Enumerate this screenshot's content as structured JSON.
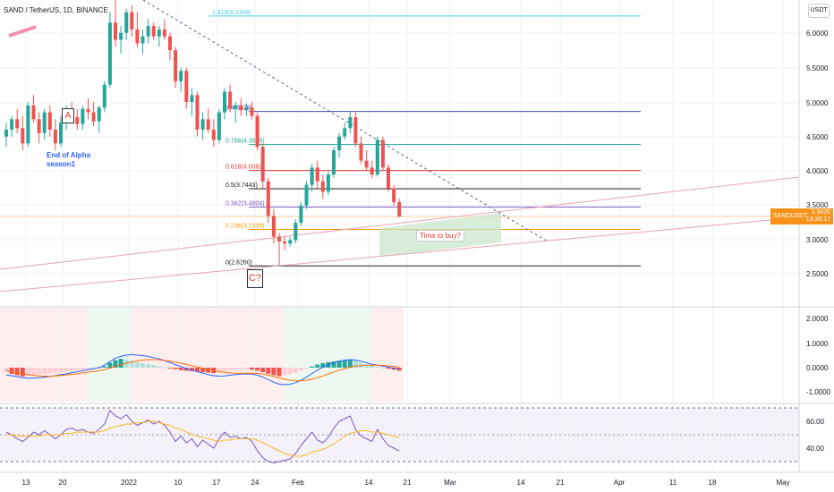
{
  "header": {
    "symbol_title": "SAND / TetherUS, 1D, BINANCE",
    "currency_label": "USDT"
  },
  "colors": {
    "up": "#26a69a",
    "down": "#ef5350",
    "grid": "#eef0f3",
    "macd_line": "#2962ff",
    "signal_line": "#ff6d00",
    "rsi_line": "#7e57c2",
    "rsi_ma": "#f7b924",
    "price_tag": "#f7931a"
  },
  "annotations": {
    "label_a": "A",
    "label_c": "C?",
    "alpha_note": "End of Alpha\nseason1",
    "buy_note": "Time to buy?"
  },
  "fib_levels": [
    {
      "label": "1.618(6.2448)",
      "value": 6.2448,
      "color": "#4dd0e1"
    },
    {
      "label": "1(4.8626)",
      "value": 4.8626,
      "color": "#3f51b5"
    },
    {
      "label": "0.786(4.3839)",
      "value": 4.3839,
      "color": "#26a69a"
    },
    {
      "label": "0.618(4.0082)",
      "value": 4.0082,
      "color": "#e53935"
    },
    {
      "label": "0.5(3.7443)",
      "value": 3.7443,
      "color": "#212121"
    },
    {
      "label": "0.382(3.4804)",
      "value": 3.4804,
      "color": "#7e57c2"
    },
    {
      "label": "0.236(3.1539)",
      "value": 3.1539,
      "color": "#ff9800"
    },
    {
      "label": "0(2.6260)",
      "value": 2.626,
      "color": "#212121"
    }
  ],
  "price_tag": {
    "symbol": "SANDUSDT",
    "value": "3.3420",
    "countdown": "13:36:17"
  },
  "chart_data": {
    "type": "candlestick",
    "price_axis": {
      "ticks": [
        "6.0000",
        "5.5000",
        "5.0000",
        "4.5000",
        "4.0000",
        "3.5000",
        "3.0000",
        "2.5000"
      ],
      "range": [
        2.2,
        6.5
      ]
    },
    "macd_axis": {
      "ticks": [
        "2.0000",
        "1.0000",
        "0.0000",
        "-1.0000"
      ]
    },
    "rsi_axis": {
      "ticks": [
        "60.00",
        "40.00"
      ],
      "upper_band": 70,
      "lower_band": 30
    },
    "x_ticks": [
      "13",
      "20",
      "2022",
      "10",
      "17",
      "24",
      "Feb",
      "14",
      "21",
      "Mar",
      "14",
      "21",
      "Apr",
      "11",
      "18",
      "May"
    ],
    "candles": [
      [
        4.5,
        4.7,
        4.35,
        4.6
      ],
      [
        4.6,
        4.8,
        4.5,
        4.75
      ],
      [
        4.75,
        4.9,
        4.55,
        4.62
      ],
      [
        4.62,
        4.8,
        4.3,
        4.4
      ],
      [
        4.4,
        5.0,
        4.35,
        4.95
      ],
      [
        4.95,
        5.1,
        4.7,
        4.75
      ],
      [
        4.75,
        4.85,
        4.4,
        4.55
      ],
      [
        4.55,
        4.9,
        4.45,
        4.85
      ],
      [
        4.85,
        4.95,
        4.5,
        4.6
      ],
      [
        4.6,
        4.75,
        4.3,
        4.4
      ],
      [
        4.4,
        4.8,
        4.35,
        4.7
      ],
      [
        4.7,
        4.95,
        4.6,
        4.9
      ],
      [
        4.9,
        5.0,
        4.7,
        4.78
      ],
      [
        4.78,
        4.9,
        4.6,
        4.68
      ],
      [
        4.68,
        4.95,
        4.6,
        4.9
      ],
      [
        4.9,
        5.05,
        4.75,
        4.85
      ],
      [
        4.85,
        5.0,
        4.65,
        4.72
      ],
      [
        4.72,
        4.95,
        4.55,
        4.92
      ],
      [
        4.92,
        5.3,
        4.85,
        5.25
      ],
      [
        5.25,
        6.3,
        5.2,
        6.15
      ],
      [
        6.15,
        6.5,
        5.8,
        5.9
      ],
      [
        5.9,
        6.1,
        5.7,
        6.0
      ],
      [
        6.0,
        6.35,
        5.9,
        6.3
      ],
      [
        6.3,
        6.4,
        5.95,
        6.05
      ],
      [
        6.05,
        6.3,
        5.8,
        5.85
      ],
      [
        5.85,
        6.05,
        5.7,
        5.95
      ],
      [
        5.95,
        6.2,
        5.85,
        6.1
      ],
      [
        6.1,
        6.15,
        5.9,
        5.95
      ],
      [
        5.95,
        6.1,
        5.8,
        6.05
      ],
      [
        6.05,
        6.2,
        5.9,
        5.95
      ],
      [
        5.95,
        6.0,
        5.6,
        5.75
      ],
      [
        5.75,
        5.8,
        5.2,
        5.3
      ],
      [
        5.3,
        5.5,
        5.15,
        5.45
      ],
      [
        5.45,
        5.5,
        4.9,
        5.0
      ],
      [
        5.0,
        5.2,
        4.8,
        5.1
      ],
      [
        5.1,
        5.15,
        4.5,
        4.6
      ],
      [
        4.6,
        4.85,
        4.45,
        4.75
      ],
      [
        4.75,
        4.9,
        4.55,
        4.6
      ],
      [
        4.6,
        4.75,
        4.35,
        4.45
      ],
      [
        4.45,
        4.9,
        4.4,
        4.85
      ],
      [
        4.85,
        5.2,
        4.75,
        5.15
      ],
      [
        5.15,
        5.25,
        4.85,
        4.9
      ],
      [
        4.9,
        5.0,
        4.7,
        4.95
      ],
      [
        4.95,
        5.05,
        4.8,
        4.88
      ],
      [
        4.88,
        4.98,
        4.8,
        4.92
      ],
      [
        4.92,
        5.0,
        4.75,
        4.8
      ],
      [
        4.8,
        4.85,
        4.3,
        4.35
      ],
      [
        4.35,
        4.4,
        3.75,
        3.85
      ],
      [
        3.85,
        3.9,
        3.25,
        3.35
      ],
      [
        3.35,
        3.45,
        2.95,
        3.05
      ],
      [
        3.05,
        3.1,
        2.63,
        2.98
      ],
      [
        2.98,
        3.05,
        2.85,
        2.95
      ],
      [
        2.95,
        3.05,
        2.9,
        3.0
      ],
      [
        3.0,
        3.3,
        2.95,
        3.25
      ],
      [
        3.25,
        3.55,
        3.2,
        3.5
      ],
      [
        3.5,
        3.85,
        3.45,
        3.8
      ],
      [
        3.8,
        4.1,
        3.7,
        4.05
      ],
      [
        4.05,
        4.15,
        3.75,
        3.85
      ],
      [
        3.85,
        3.95,
        3.6,
        3.7
      ],
      [
        3.7,
        4.0,
        3.65,
        3.95
      ],
      [
        3.95,
        4.35,
        3.9,
        4.3
      ],
      [
        4.3,
        4.55,
        4.2,
        4.5
      ],
      [
        4.5,
        4.7,
        4.45,
        4.62
      ],
      [
        4.62,
        4.86,
        4.55,
        4.78
      ],
      [
        4.78,
        4.85,
        4.35,
        4.4
      ],
      [
        4.4,
        4.5,
        4.1,
        4.15
      ],
      [
        4.15,
        4.3,
        4.0,
        4.05
      ],
      [
        4.05,
        4.15,
        3.9,
        3.95
      ],
      [
        3.95,
        4.5,
        3.92,
        4.45
      ],
      [
        4.45,
        4.5,
        4.0,
        4.05
      ],
      [
        4.05,
        4.1,
        3.7,
        3.75
      ],
      [
        3.75,
        3.8,
        3.5,
        3.55
      ],
      [
        3.55,
        3.6,
        3.33,
        3.34
      ]
    ],
    "macd_histogram": [
      -0.2,
      -0.25,
      -0.3,
      -0.35,
      -0.33,
      -0.3,
      -0.28,
      -0.25,
      -0.22,
      -0.2,
      -0.18,
      -0.15,
      -0.12,
      -0.1,
      -0.08,
      -0.06,
      -0.04,
      -0.03,
      0.05,
      0.2,
      0.3,
      0.35,
      0.32,
      0.28,
      0.22,
      0.18,
      0.15,
      0.1,
      0.06,
      0.02,
      -0.02,
      -0.06,
      -0.1,
      -0.12,
      -0.14,
      -0.16,
      -0.18,
      -0.2,
      -0.22,
      -0.2,
      -0.15,
      -0.12,
      -0.1,
      -0.08,
      -0.07,
      -0.08,
      -0.12,
      -0.18,
      -0.24,
      -0.3,
      -0.34,
      -0.3,
      -0.26,
      -0.2,
      -0.12,
      -0.04,
      0.05,
      0.12,
      0.18,
      0.22,
      0.25,
      0.28,
      0.3,
      0.3,
      0.26,
      0.2,
      0.14,
      0.08,
      0.04,
      0.0,
      -0.04,
      -0.08,
      -0.12
    ],
    "macd_line": [
      -0.3,
      -0.32,
      -0.36,
      -0.4,
      -0.42,
      -0.42,
      -0.4,
      -0.38,
      -0.35,
      -0.32,
      -0.28,
      -0.25,
      -0.2,
      -0.16,
      -0.12,
      -0.08,
      -0.04,
      0.0,
      0.1,
      0.25,
      0.38,
      0.45,
      0.5,
      0.52,
      0.5,
      0.48,
      0.45,
      0.4,
      0.35,
      0.28,
      0.2,
      0.12,
      0.04,
      -0.04,
      -0.1,
      -0.16,
      -0.22,
      -0.28,
      -0.32,
      -0.34,
      -0.33,
      -0.3,
      -0.28,
      -0.26,
      -0.25,
      -0.26,
      -0.3,
      -0.38,
      -0.48,
      -0.58,
      -0.66,
      -0.68,
      -0.66,
      -0.6,
      -0.5,
      -0.38,
      -0.24,
      -0.1,
      0.02,
      0.12,
      0.2,
      0.26,
      0.3,
      0.32,
      0.3,
      0.26,
      0.2,
      0.14,
      0.1,
      0.06,
      0.02,
      -0.02,
      -0.06
    ],
    "signal_line": [
      -0.1,
      -0.15,
      -0.2,
      -0.24,
      -0.28,
      -0.31,
      -0.33,
      -0.34,
      -0.34,
      -0.33,
      -0.31,
      -0.29,
      -0.27,
      -0.24,
      -0.21,
      -0.18,
      -0.15,
      -0.12,
      -0.08,
      -0.02,
      0.06,
      0.12,
      0.18,
      0.23,
      0.27,
      0.3,
      0.32,
      0.32,
      0.31,
      0.29,
      0.26,
      0.22,
      0.18,
      0.13,
      0.08,
      0.03,
      -0.02,
      -0.07,
      -0.12,
      -0.16,
      -0.19,
      -0.21,
      -0.22,
      -0.22,
      -0.22,
      -0.22,
      -0.23,
      -0.26,
      -0.3,
      -0.35,
      -0.41,
      -0.46,
      -0.5,
      -0.52,
      -0.52,
      -0.5,
      -0.46,
      -0.4,
      -0.33,
      -0.25,
      -0.17,
      -0.1,
      -0.04,
      0.02,
      0.06,
      0.08,
      0.1,
      0.1,
      0.1,
      0.09,
      0.07,
      0.05,
      0.03
    ],
    "rsi": [
      52,
      50,
      47,
      45,
      48,
      52,
      50,
      53,
      50,
      47,
      50,
      54,
      55,
      53,
      54,
      52,
      51,
      54,
      58,
      68,
      64,
      62,
      65,
      60,
      57,
      59,
      61,
      58,
      60,
      57,
      52,
      45,
      49,
      44,
      47,
      41,
      46,
      43,
      40,
      47,
      52,
      48,
      49,
      47,
      48,
      45,
      38,
      33,
      30,
      29,
      30,
      31,
      32,
      36,
      42,
      47,
      52,
      46,
      44,
      48,
      55,
      60,
      62,
      64,
      54,
      49,
      47,
      45,
      54,
      47,
      42,
      40,
      38
    ],
    "rsi_ma": [
      50,
      50,
      49,
      49,
      49,
      49,
      49,
      50,
      50,
      50,
      50,
      51,
      51,
      52,
      52,
      52,
      52,
      52,
      53,
      55,
      56,
      57,
      58,
      58,
      59,
      59,
      60,
      60,
      59,
      58,
      57,
      55,
      54,
      52,
      50,
      49,
      48,
      47,
      46,
      45,
      46,
      46,
      47,
      47,
      47,
      47,
      46,
      44,
      42,
      40,
      38,
      36,
      35,
      34,
      34,
      35,
      37,
      38,
      39,
      41,
      43,
      46,
      49,
      51,
      52,
      53,
      53,
      52,
      52,
      51,
      50,
      49,
      48
    ]
  }
}
